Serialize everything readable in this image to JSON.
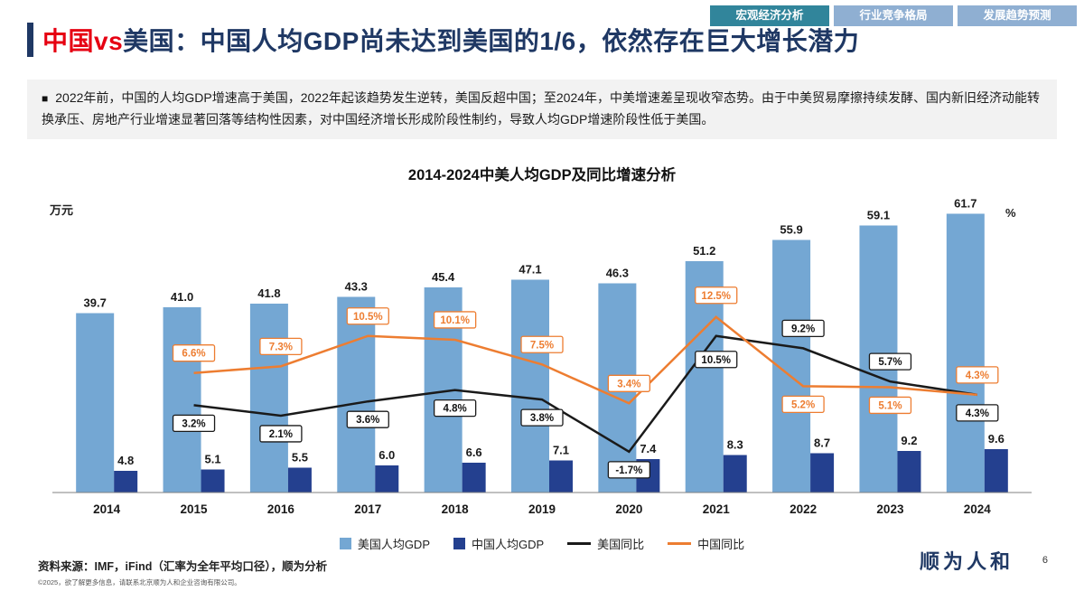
{
  "tabs": [
    {
      "label": "宏观经济分析",
      "active": true
    },
    {
      "label": "行业竞争格局",
      "active": false
    },
    {
      "label": "发展趋势预测",
      "active": false
    }
  ],
  "colors": {
    "tab_active": "#31859B",
    "tab_inactive": "#8FAFD2",
    "title_navy": "#1F3864",
    "title_red": "#E60012",
    "us_bar": "#74A7D3",
    "cn_bar": "#24408F",
    "us_line": "#1a1a1a",
    "cn_line": "#ED7D31"
  },
  "header": {
    "title_highlight": "中国vs",
    "title_rest": "美国：中国人均GDP尚未达到美国的1/6，依然存在巨大增长潜力"
  },
  "summary": {
    "bullet": "■",
    "text": "2022年前，中国的人均GDP增速高于美国，2022年起该趋势发生逆转，美国反超中国；至2024年，中美增速差呈现收窄态势。由于中美贸易摩擦持续发酵、国内新旧经济动能转换承压、房地产行业增速显著回落等结构性因素，对中国经济增长形成阶段性制约，导致人均GDP增速阶段性低于美国。"
  },
  "chart_data": {
    "type": "bar+line",
    "title": "2014-2024中美人均GDP及同比增速分析",
    "left_axis_label": "万元",
    "right_axis_label": "%",
    "categories": [
      2014,
      2015,
      2016,
      2017,
      2018,
      2019,
      2020,
      2021,
      2022,
      2023,
      2024
    ],
    "bar_series": [
      {
        "name": "美国人均GDP",
        "color": "#74A7D3",
        "unit": "万元",
        "values": [
          39.7,
          41.0,
          41.8,
          43.3,
          45.4,
          47.1,
          46.3,
          51.2,
          55.9,
          59.1,
          61.7
        ]
      },
      {
        "name": "中国人均GDP",
        "color": "#24408F",
        "unit": "万元",
        "values": [
          4.8,
          5.1,
          5.5,
          6.0,
          6.6,
          7.1,
          7.4,
          8.3,
          8.7,
          9.2,
          9.6
        ]
      }
    ],
    "line_series": [
      {
        "name": "美国同比",
        "color": "#1a1a1a",
        "unit": "%",
        "x_categories": [
          2015,
          2016,
          2017,
          2018,
          2019,
          2020,
          2021,
          2022,
          2023,
          2024
        ],
        "values": [
          3.2,
          2.1,
          3.6,
          4.8,
          3.8,
          -1.7,
          10.5,
          9.2,
          5.7,
          4.3
        ]
      },
      {
        "name": "中国同比",
        "color": "#ED7D31",
        "unit": "%",
        "x_categories": [
          2015,
          2016,
          2017,
          2018,
          2019,
          2020,
          2021,
          2022,
          2023,
          2024
        ],
        "values": [
          6.6,
          7.3,
          10.5,
          10.1,
          7.5,
          3.4,
          12.5,
          5.2,
          5.1,
          4.3
        ]
      }
    ],
    "legend": [
      "美国人均GDP",
      "中国人均GDP",
      "美国同比",
      "中国同比"
    ],
    "legend_position": "bottom"
  },
  "footer": {
    "source": "资料来源：IMF，iFind（汇率为全年平均口径），顺为分析",
    "copyright": "©2025，欲了解更多信息，请联系北京顺为人和企业咨询有限公司。",
    "logo": "顺为人和",
    "page": "6"
  }
}
